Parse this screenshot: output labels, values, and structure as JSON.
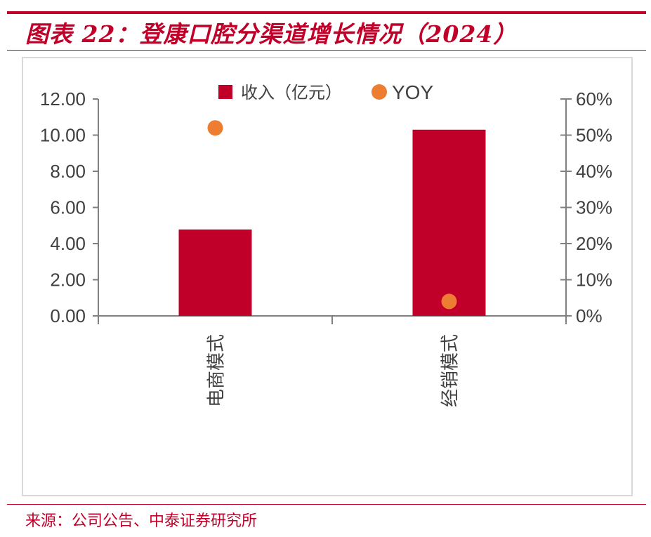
{
  "header": {
    "title": "图表 22：登康口腔分渠道增长情况（2024）"
  },
  "footer": {
    "source": "来源：公司公告、中泰证券研究所"
  },
  "colors": {
    "accent": "#c00028",
    "bar": "#c00028",
    "dot": "#ed7d31",
    "axis": "#808080",
    "text": "#404040"
  },
  "chart_data": {
    "type": "bar",
    "categories": [
      "电商模式",
      "经销模式"
    ],
    "series": [
      {
        "name": "收入（亿元）",
        "type": "bar",
        "axis": "left",
        "values": [
          4.78,
          10.3
        ]
      },
      {
        "name": "YOY",
        "type": "scatter",
        "axis": "right",
        "values": [
          0.52,
          0.04
        ]
      }
    ],
    "y_left": {
      "ticks": [
        "0.00",
        "2.00",
        "4.00",
        "6.00",
        "8.00",
        "10.00",
        "12.00"
      ],
      "ylim": [
        0,
        12
      ]
    },
    "y_right": {
      "ticks": [
        "0%",
        "10%",
        "20%",
        "30%",
        "40%",
        "50%",
        "60%"
      ],
      "ylim": [
        0,
        0.6
      ]
    },
    "legend_position": "top-center",
    "grid": false
  }
}
